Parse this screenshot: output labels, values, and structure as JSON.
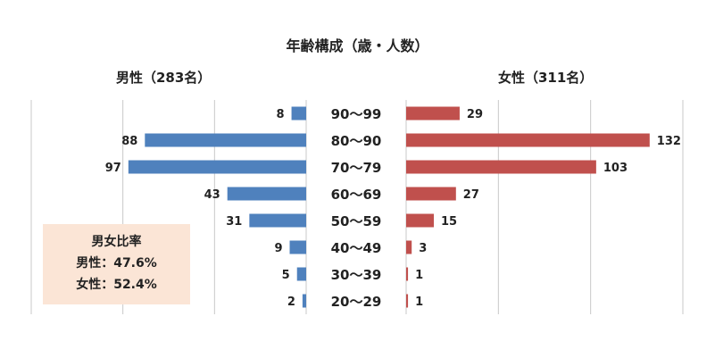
{
  "chart_data": {
    "type": "bar",
    "title": "年齢構成（歳・人数）",
    "categories": [
      "90〜99",
      "80〜90",
      "70〜79",
      "60〜69",
      "50〜59",
      "40〜49",
      "30〜39",
      "20〜29"
    ],
    "series": [
      {
        "name": "男性（283名）",
        "values": [
          8,
          88,
          97,
          43,
          31,
          9,
          5,
          2
        ],
        "color": "#4f81bd"
      },
      {
        "name": "女性（311名）",
        "values": [
          29,
          132,
          103,
          27,
          15,
          3,
          1,
          1
        ],
        "color": "#c0504d"
      }
    ],
    "xlim": [
      0,
      150
    ],
    "grid": true
  },
  "ratio_box": {
    "title": "男女比率",
    "male": "男性：47.6%",
    "female": "女性：52.4%",
    "background": "#fbe5d6"
  }
}
